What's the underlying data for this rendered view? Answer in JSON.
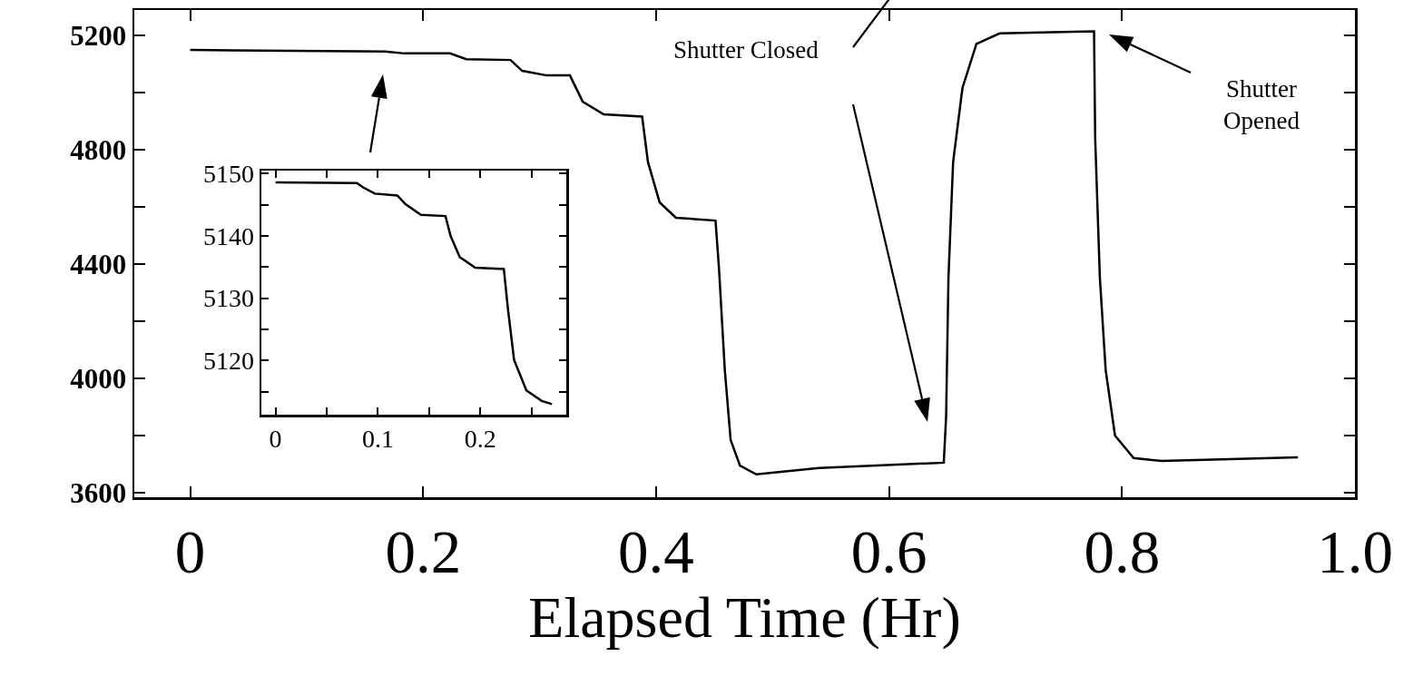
{
  "chart_data": [
    {
      "type": "line",
      "xlabel": "Elapsed Time (Hr)",
      "color": "#000000",
      "marker": "none",
      "line_style": "solid",
      "grid": false,
      "legend": false,
      "x": [
        0,
        0.167,
        0.184,
        0.223,
        0.237,
        0.275,
        0.285,
        0.306,
        0.326,
        0.337,
        0.355,
        0.388,
        0.393,
        0.403,
        0.417,
        0.451,
        0.454,
        0.459,
        0.464,
        0.472,
        0.486,
        0.54,
        0.647,
        0.649,
        0.651,
        0.655,
        0.663,
        0.675,
        0.695,
        0.776,
        0.777,
        0.781,
        0.786,
        0.794,
        0.81,
        0.834,
        0.951
      ],
      "values": [
        5149,
        5144,
        5137,
        5137,
        5117,
        5114,
        5076,
        5060,
        5060,
        4968,
        4924,
        4916,
        4757,
        4616,
        4562,
        4552,
        4384,
        4029,
        3784,
        3695,
        3664,
        3686,
        3705,
        3867,
        4352,
        4756,
        5016,
        5170,
        5207,
        5214,
        4838,
        4352,
        4029,
        3800,
        3721,
        3711,
        3724
      ],
      "xlim": [
        -0.048,
        1.0
      ],
      "xticks": [
        0,
        0.2,
        0.4,
        0.6,
        0.8,
        {
          "value": 1,
          "label": "1.0"
        }
      ],
      "ylim": [
        3584,
        5289
      ],
      "yticks": [
        3600,
        {
          "value": 3800,
          "label": null
        },
        4000,
        {
          "value": 4200,
          "label": null
        },
        4400,
        {
          "value": 4600,
          "label": null
        },
        4800,
        {
          "value": 5000,
          "label": null
        },
        5200
      ],
      "annotations": [
        "Shutter Closed",
        "Shutter\nOpened"
      ]
    },
    {
      "type": "line",
      "color": "#000000",
      "marker": "none",
      "line_style": "solid",
      "grid": false,
      "legend": false,
      "x": [
        0,
        0.0796,
        0.0855,
        0.097,
        0.119,
        0.127,
        0.142,
        0.166,
        0.171,
        0.18,
        0.195,
        0.223,
        0.227,
        0.233,
        0.245,
        0.26,
        0.27
      ],
      "values": [
        5148.6,
        5148.5,
        5147.8,
        5146.8,
        5146.5,
        5145.1,
        5143.4,
        5143.2,
        5140.0,
        5136.6,
        5134.9,
        5134.7,
        5128.3,
        5120.1,
        5115.2,
        5113.5,
        5113.0
      ],
      "xlim": [
        -0.0138,
        0.284
      ],
      "xticks": [
        0,
        {
          "value": 0.05,
          "label": null
        },
        0.1,
        {
          "value": 0.15,
          "label": null
        },
        0.2,
        {
          "value": 0.25,
          "label": null
        }
      ],
      "ylim": [
        5111.3,
        5150.5
      ],
      "yticks": [
        {
          "value": 5115,
          "label": null
        },
        5120,
        {
          "value": 5125,
          "label": null
        },
        5130,
        {
          "value": 5135,
          "label": null
        },
        5140,
        {
          "value": 5145,
          "label": null
        },
        5150
      ]
    }
  ]
}
